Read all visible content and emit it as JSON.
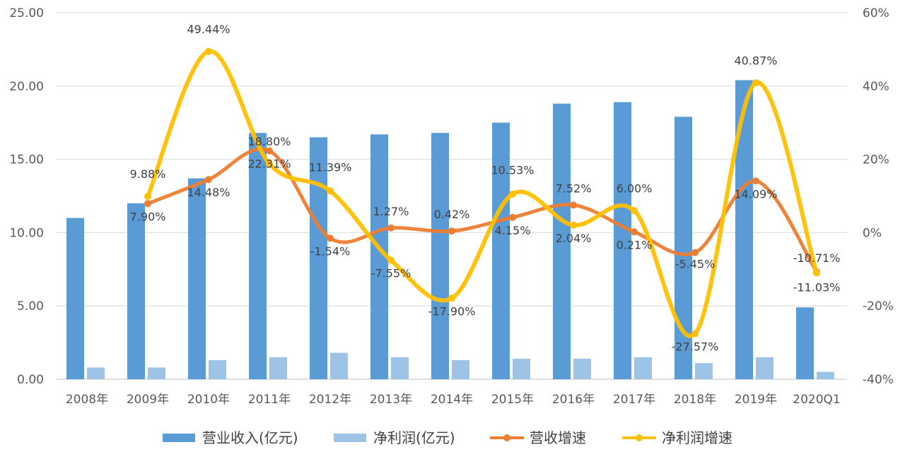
{
  "chart_data": {
    "type": "bar",
    "categories": [
      "2008年",
      "2009年",
      "2010年",
      "2011年",
      "2012年",
      "2013年",
      "2014年",
      "2015年",
      "2016年",
      "2017年",
      "2018年",
      "2019年",
      "2020Q1"
    ],
    "left_axis": {
      "ticks": [
        "0.00",
        "5.00",
        "10.00",
        "15.00",
        "20.00",
        "25.00"
      ],
      "ylim": [
        0,
        25
      ]
    },
    "right_axis": {
      "ticks": [
        "-40%",
        "-20%",
        "0%",
        "20%",
        "40%",
        "60%"
      ],
      "ylim": [
        -40,
        60
      ]
    },
    "series": [
      {
        "name": "营业收入(亿元)",
        "type": "bar",
        "axis": "left",
        "color": "#5b9bd5",
        "values": [
          11.0,
          12.0,
          13.7,
          16.8,
          16.5,
          16.7,
          16.8,
          17.5,
          18.8,
          18.9,
          17.9,
          20.4,
          4.9
        ]
      },
      {
        "name": "净利润(亿元)",
        "type": "bar",
        "axis": "left",
        "color": "#9dc3e6",
        "values": [
          0.8,
          0.8,
          1.3,
          1.5,
          1.8,
          1.5,
          1.3,
          1.4,
          1.4,
          1.5,
          1.1,
          1.5,
          0.5
        ]
      },
      {
        "name": "营收增速",
        "type": "line",
        "axis": "right",
        "color": "#ed7d31",
        "values": [
          null,
          7.9,
          14.48,
          22.31,
          -1.54,
          1.27,
          0.42,
          4.15,
          7.52,
          0.21,
          -5.45,
          14.09,
          -10.71
        ],
        "labels": [
          null,
          "7.90%",
          "14.48%",
          "22.31%",
          "-1.54%",
          "1.27%",
          "0.42%",
          "4.15%",
          "7.52%",
          "0.21%",
          "-5.45%",
          "14.09%",
          "-10.71%"
        ]
      },
      {
        "name": "净利润增速",
        "type": "line",
        "axis": "right",
        "color": "#ffc000",
        "values": [
          null,
          9.88,
          49.44,
          18.8,
          11.39,
          -7.55,
          -17.9,
          10.53,
          2.04,
          6.0,
          -27.57,
          40.87,
          -11.03
        ],
        "labels": [
          null,
          "9.88%",
          "49.44%",
          "18.80%",
          "11.39%",
          "-7.55%",
          "-17.90%",
          "10.53%",
          "2.04%",
          "6.00%",
          "-27.57%",
          "40.87%",
          "-11.03%"
        ]
      }
    ],
    "grid": true,
    "legend": "bottom"
  }
}
